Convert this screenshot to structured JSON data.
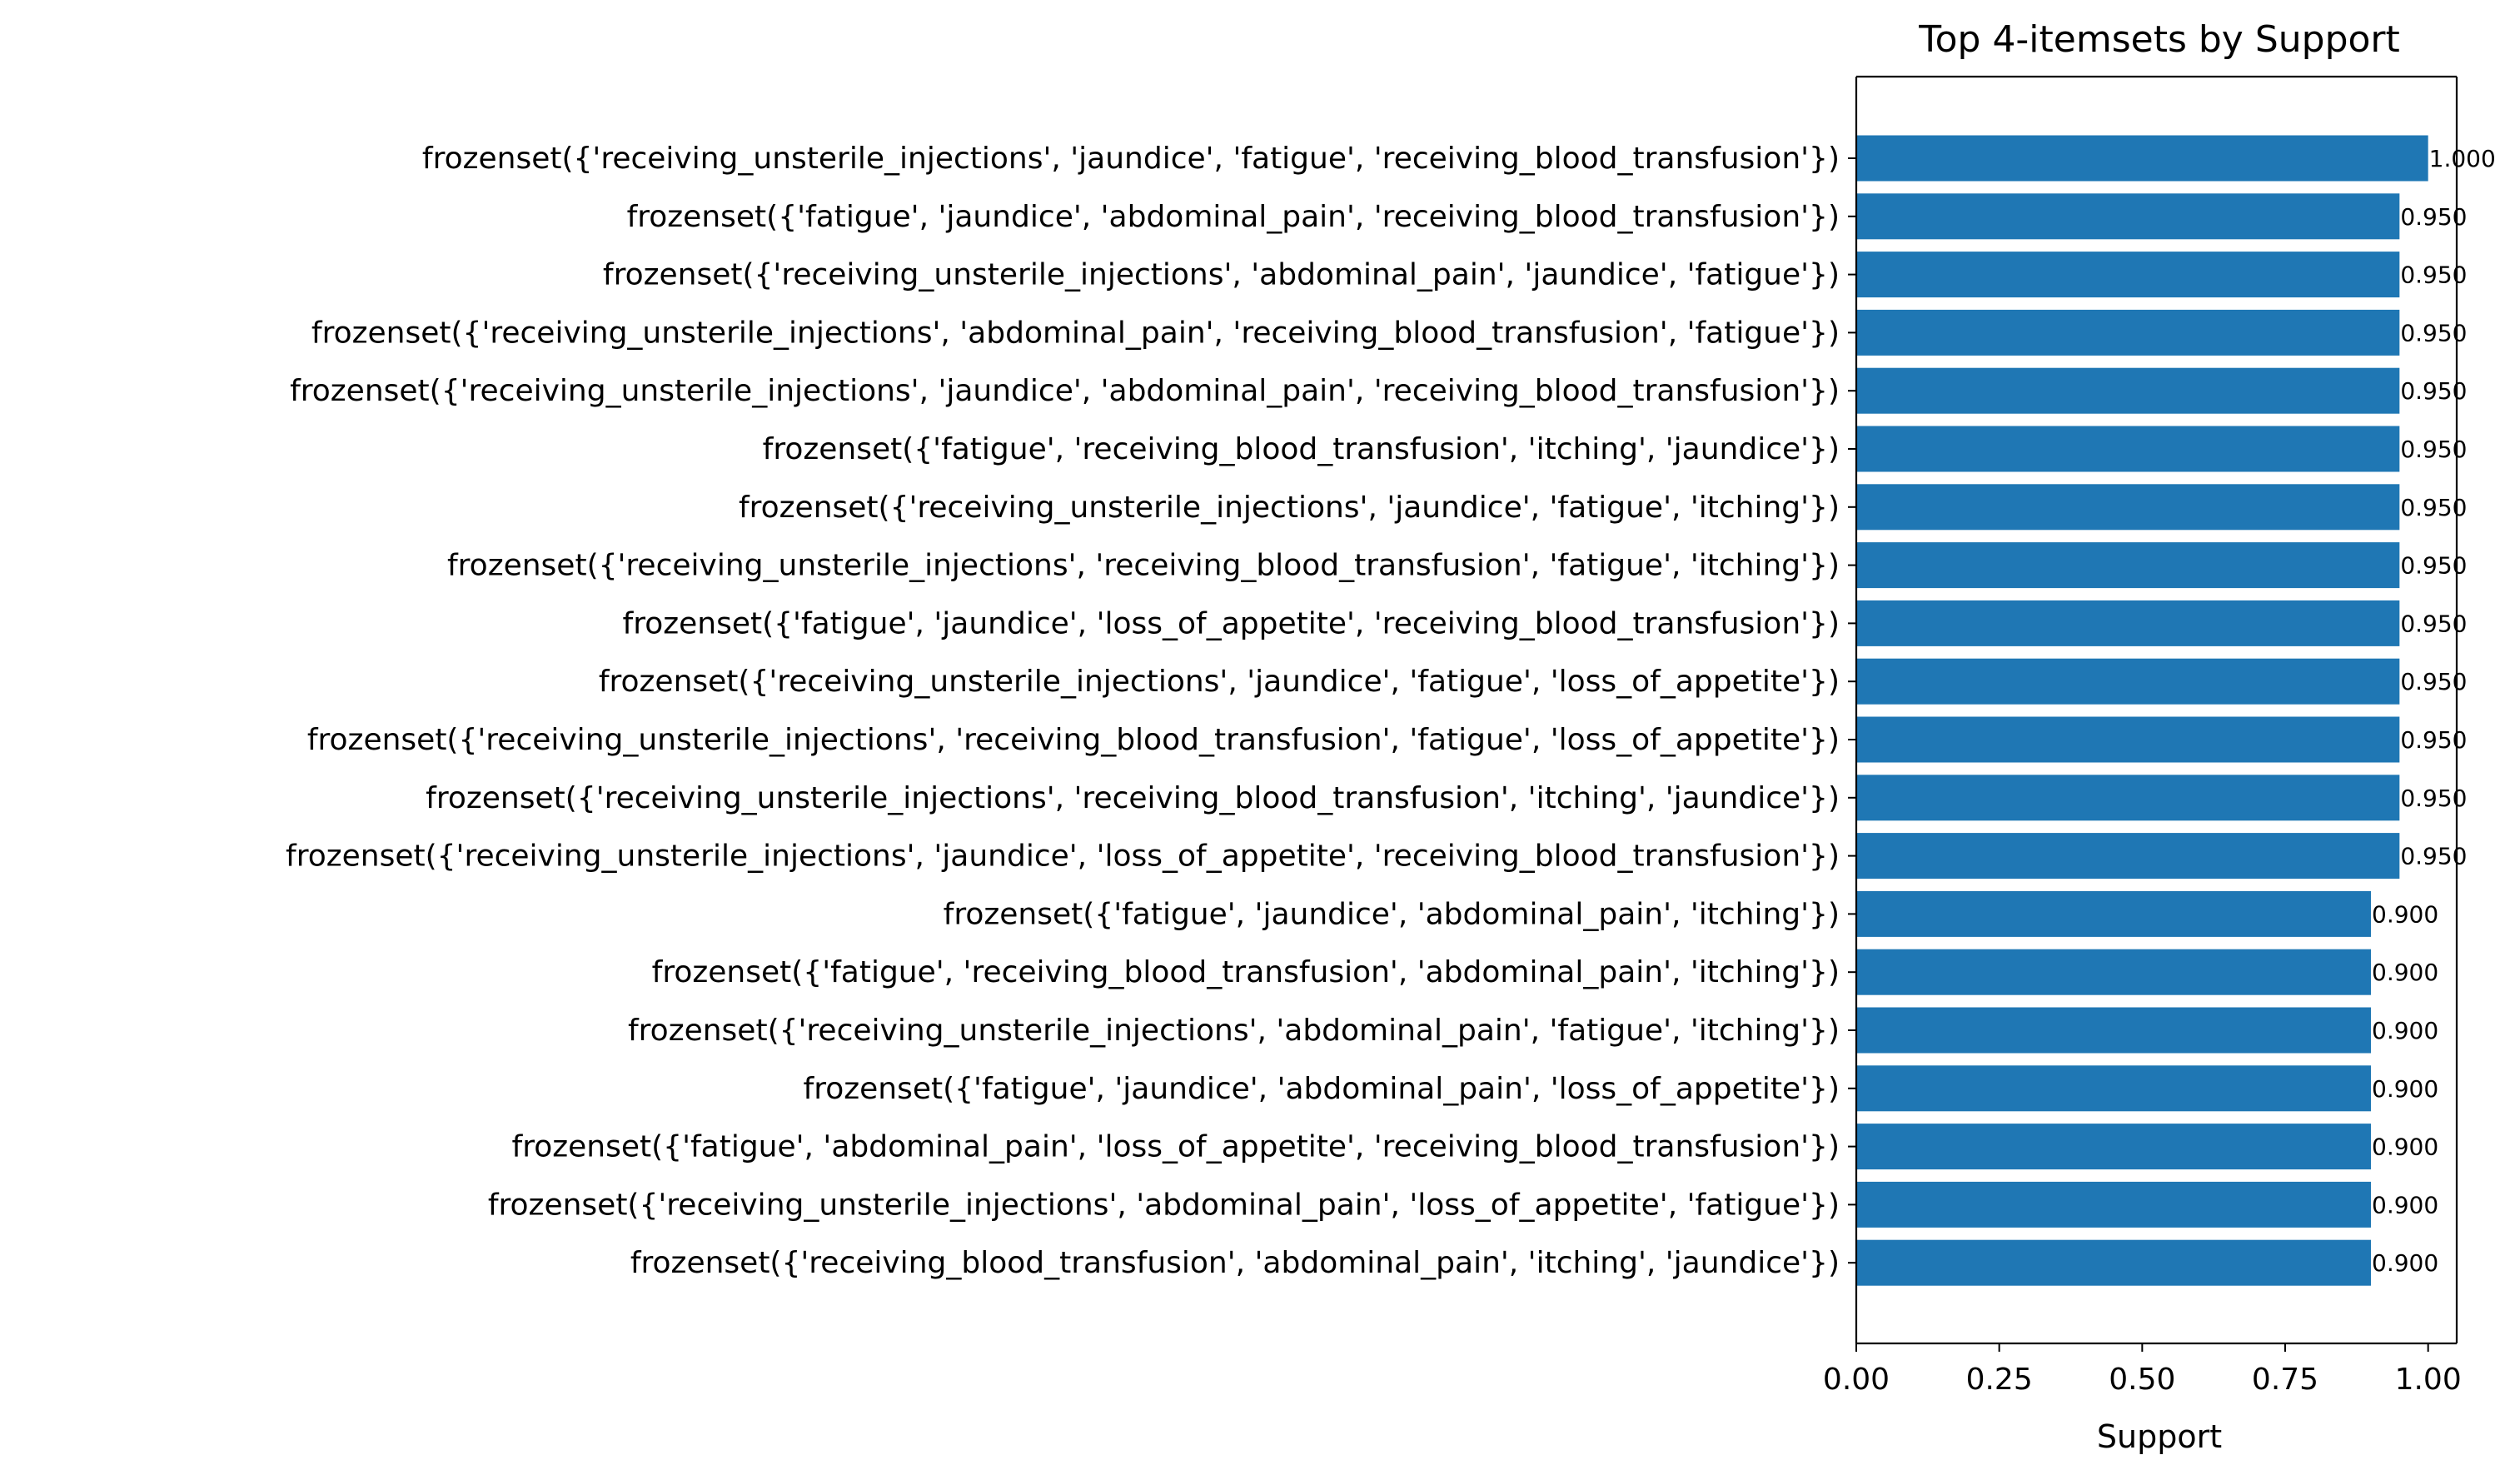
{
  "chart_data": {
    "type": "bar",
    "orientation": "horizontal",
    "title": "Top 4-itemsets by Support",
    "xlabel": "Support",
    "ylabel": "",
    "xlim": [
      0,
      1.05
    ],
    "xticks": [
      0.0,
      0.25,
      0.5,
      0.75,
      1.0
    ],
    "xtick_labels": [
      "0.00",
      "0.25",
      "0.50",
      "0.75",
      "1.00"
    ],
    "grid": false,
    "bar_color": "#1f77b4",
    "categories": [
      "frozenset({'receiving_unsterile_injections', 'jaundice', 'fatigue', 'receiving_blood_transfusion'})",
      "frozenset({'fatigue', 'jaundice', 'abdominal_pain', 'receiving_blood_transfusion'})",
      "frozenset({'receiving_unsterile_injections', 'abdominal_pain', 'jaundice', 'fatigue'})",
      "frozenset({'receiving_unsterile_injections', 'abdominal_pain', 'receiving_blood_transfusion', 'fatigue'})",
      "frozenset({'receiving_unsterile_injections', 'jaundice', 'abdominal_pain', 'receiving_blood_transfusion'})",
      "frozenset({'fatigue', 'receiving_blood_transfusion', 'itching', 'jaundice'})",
      "frozenset({'receiving_unsterile_injections', 'jaundice', 'fatigue', 'itching'})",
      "frozenset({'receiving_unsterile_injections', 'receiving_blood_transfusion', 'fatigue', 'itching'})",
      "frozenset({'fatigue', 'jaundice', 'loss_of_appetite', 'receiving_blood_transfusion'})",
      "frozenset({'receiving_unsterile_injections', 'jaundice', 'fatigue', 'loss_of_appetite'})",
      "frozenset({'receiving_unsterile_injections', 'receiving_blood_transfusion', 'fatigue', 'loss_of_appetite'})",
      "frozenset({'receiving_unsterile_injections', 'receiving_blood_transfusion', 'itching', 'jaundice'})",
      "frozenset({'receiving_unsterile_injections', 'jaundice', 'loss_of_appetite', 'receiving_blood_transfusion'})",
      "frozenset({'fatigue', 'jaundice', 'abdominal_pain', 'itching'})",
      "frozenset({'fatigue', 'receiving_blood_transfusion', 'abdominal_pain', 'itching'})",
      "frozenset({'receiving_unsterile_injections', 'abdominal_pain', 'fatigue', 'itching'})",
      "frozenset({'fatigue', 'jaundice', 'abdominal_pain', 'loss_of_appetite'})",
      "frozenset({'fatigue', 'abdominal_pain', 'loss_of_appetite', 'receiving_blood_transfusion'})",
      "frozenset({'receiving_unsterile_injections', 'abdominal_pain', 'loss_of_appetite', 'fatigue'})",
      "frozenset({'receiving_blood_transfusion', 'abdominal_pain', 'itching', 'jaundice'})"
    ],
    "values": [
      1.0,
      0.95,
      0.95,
      0.95,
      0.95,
      0.95,
      0.95,
      0.95,
      0.95,
      0.95,
      0.95,
      0.95,
      0.95,
      0.9,
      0.9,
      0.9,
      0.9,
      0.9,
      0.9,
      0.9
    ],
    "value_labels": [
      "1.000",
      "0.950",
      "0.950",
      "0.950",
      "0.950",
      "0.950",
      "0.950",
      "0.950",
      "0.950",
      "0.950",
      "0.950",
      "0.950",
      "0.950",
      "0.900",
      "0.900",
      "0.900",
      "0.900",
      "0.900",
      "0.900",
      "0.900"
    ]
  }
}
